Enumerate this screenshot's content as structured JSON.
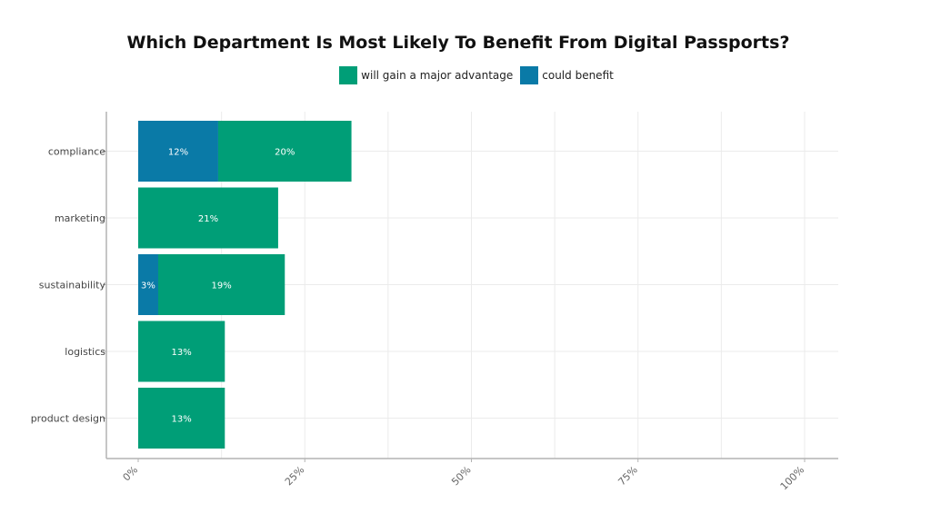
{
  "chart_data": {
    "type": "bar",
    "orientation": "horizontal",
    "stacked": true,
    "title": "Which Department Is Most Likely To Benefit From Digital Passports?",
    "categories": [
      "compliance",
      "marketing",
      "sustainability",
      "logistics",
      "product design"
    ],
    "series": [
      {
        "name": "could benefit",
        "color": "#0a7aa7",
        "values": [
          12,
          0,
          3,
          0,
          0
        ]
      },
      {
        "name": "will gain a major advantage",
        "color": "#009e77",
        "values": [
          20,
          21,
          19,
          13,
          13
        ]
      }
    ],
    "legend_order": [
      "will gain a major advantage",
      "could benefit"
    ],
    "legend_position": "top-center",
    "xlim": [
      0,
      105
    ],
    "x_ticks": [
      {
        "value": 0,
        "label": "0%"
      },
      {
        "value": 25,
        "label": "25%"
      },
      {
        "value": 50,
        "label": "50%"
      },
      {
        "value": 75,
        "label": "75%"
      },
      {
        "value": 100,
        "label": "100%"
      }
    ],
    "grid": true
  }
}
